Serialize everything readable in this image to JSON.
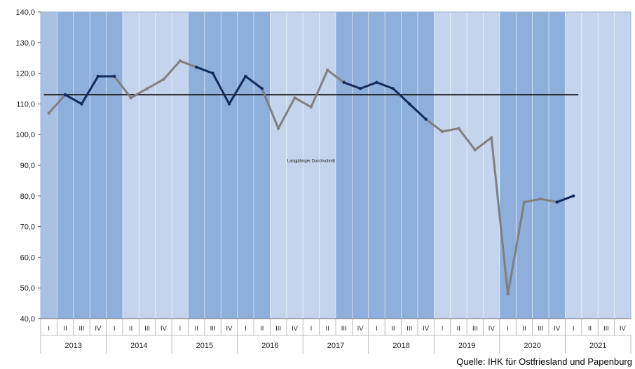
{
  "chart_data": {
    "type": "line",
    "ylim": [
      40,
      140
    ],
    "y_ticks": [
      "140,0",
      "130,0",
      "120,0",
      "110,0",
      "100,0",
      "90,0",
      "80,0",
      "70,0",
      "60,0",
      "50,0",
      "40,0"
    ],
    "quarters": [
      "I",
      "II",
      "III",
      "IV"
    ],
    "years": [
      "2013",
      "2014",
      "2015",
      "2016",
      "2017",
      "2018",
      "2019",
      "2020",
      "2021"
    ],
    "x": [
      "2013 I",
      "2013 II",
      "2013 III",
      "2013 IV",
      "2014 I",
      "2014 II",
      "2014 III",
      "2014 IV",
      "2015 I",
      "2015 II",
      "2015 III",
      "2015 IV",
      "2016 I",
      "2016 II",
      "2016 III",
      "2016 IV",
      "2017 I",
      "2017 II",
      "2017 III",
      "2017 IV",
      "2018 I",
      "2018 II",
      "2018 III",
      "2018 IV",
      "2019 I",
      "2019 II",
      "2019 III",
      "2019 IV",
      "2020 I",
      "2020 II",
      "2020 III",
      "2020 IV",
      "2021 I"
    ],
    "series": [
      {
        "values": [
          107,
          113,
          110,
          119,
          119,
          112,
          115,
          118,
          124,
          122,
          120,
          110,
          119,
          115,
          102,
          112,
          109,
          121,
          117,
          115,
          117,
          115,
          110,
          105,
          101,
          102,
          95,
          99,
          48,
          78,
          79,
          78,
          80
        ],
        "color": "#7f7f7f"
      }
    ],
    "reference_line": {
      "value": 113,
      "label": "Langjähriger Durchschnitt",
      "color": "#1a1a1a"
    },
    "band_colors": {
      "dark": "#8eaedb",
      "light": "#c3d4ec",
      "line_dark": "#112a5a",
      "line_grey": "#7f7f7f"
    }
  },
  "source_note": "Quelle: IHK für Ostfriesland und Papenburg"
}
